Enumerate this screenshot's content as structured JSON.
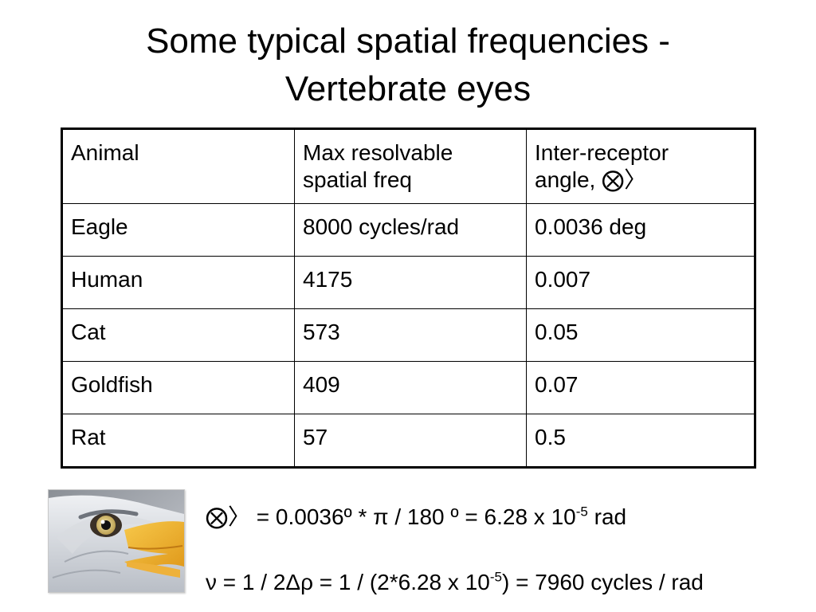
{
  "title": {
    "line1": "Some typical spatial frequencies -",
    "line2": "Vertebrate eyes"
  },
  "table": {
    "headers": [
      [
        "Animal"
      ],
      [
        "Max resolvable",
        "spatial freq"
      ],
      [
        "Inter-receptor",
        "angle, ⨂〉"
      ]
    ],
    "rows": [
      [
        "Eagle",
        "8000 cycles/rad",
        "0.0036 deg"
      ],
      [
        "Human",
        "4175",
        "0.007"
      ],
      [
        "Cat",
        "573",
        "0.05"
      ],
      [
        "Goldfish",
        "409",
        "0.07"
      ],
      [
        "Rat",
        "57",
        "0.5"
      ]
    ]
  },
  "image": {
    "subject": "bald eagle head close-up"
  },
  "formulas": {
    "line1": {
      "part1": "⨂〉 = 0.0036º   *  π  / 180 º = 6.28 x 10",
      "exp": "-5",
      "part2": " rad"
    },
    "line2": {
      "part1": "ν = 1 / 2Δρ = 1 / (2*6.28 x 10",
      "exp": "-5",
      "part2": ") = 7960 cycles / rad"
    }
  }
}
